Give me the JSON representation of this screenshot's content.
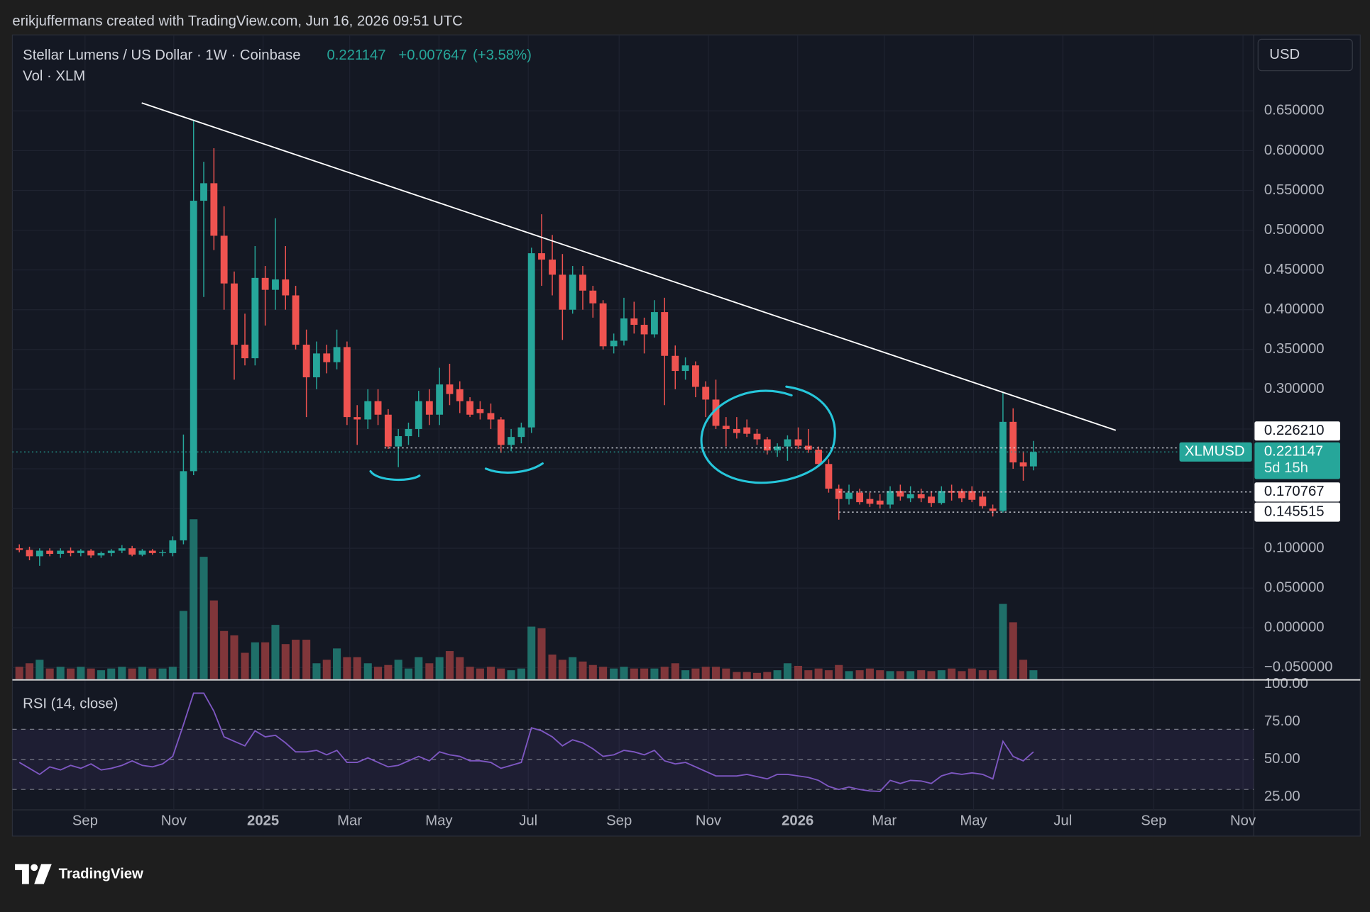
{
  "header": {
    "credit": "erikjuffermans created with TradingView.com, Jun 16, 2026 09:51 UTC"
  },
  "chart_data": {
    "type": "candlestick",
    "title": "Stellar Lumens / US Dollar · 1W · Coinbase",
    "change": {
      "value": 0.007647,
      "label": "+0.007647"
    },
    "change_percent": {
      "value": 3.58,
      "label": "(+3.58%)"
    },
    "volume_label": "Vol · XLM",
    "symbol": "XLMUSD",
    "countdown": "5d 15h",
    "currency": "USD",
    "x": [
      2024.544,
      2024.563,
      2024.582,
      2024.601,
      2024.621,
      2024.64,
      2024.659,
      2024.678,
      2024.697,
      2024.716,
      2024.736,
      2024.755,
      2024.774,
      2024.793,
      2024.812,
      2024.831,
      2024.851,
      2024.87,
      2024.889,
      2024.908,
      2024.927,
      2024.946,
      2024.966,
      2024.985,
      2025.004,
      2025.023,
      2025.042,
      2025.061,
      2025.081,
      2025.1,
      2025.119,
      2025.138,
      2025.157,
      2025.176,
      2025.196,
      2025.215,
      2025.234,
      2025.253,
      2025.272,
      2025.291,
      2025.311,
      2025.33,
      2025.349,
      2025.368,
      2025.387,
      2025.406,
      2025.426,
      2025.445,
      2025.464,
      2025.483,
      2025.502,
      2025.521,
      2025.541,
      2025.56,
      2025.579,
      2025.598,
      2025.617,
      2025.636,
      2025.656,
      2025.675,
      2025.694,
      2025.713,
      2025.732,
      2025.751,
      2025.771,
      2025.79,
      2025.809,
      2025.828,
      2025.847,
      2025.866,
      2025.886,
      2025.905,
      2025.924,
      2025.943,
      2025.962,
      2025.981,
      2026.001,
      2026.02,
      2026.039,
      2026.058,
      2026.077,
      2026.096,
      2026.116,
      2026.135,
      2026.154,
      2026.173,
      2026.192,
      2026.211,
      2026.231,
      2026.25,
      2026.269,
      2026.288,
      2026.307,
      2026.326,
      2026.346,
      2026.365,
      2026.384,
      2026.403,
      2026.422,
      2026.441
    ],
    "open": [
      0.1,
      0.098,
      0.09,
      0.097,
      0.093,
      0.097,
      0.094,
      0.097,
      0.091,
      0.094,
      0.097,
      0.1,
      0.092,
      0.097,
      0.094,
      0.094,
      0.11,
      0.197,
      0.537,
      0.559,
      0.493,
      0.433,
      0.356,
      0.339,
      0.44,
      0.425,
      0.438,
      0.418,
      0.356,
      0.315,
      0.345,
      0.334,
      0.353,
      0.265,
      0.262,
      0.285,
      0.268,
      0.228,
      0.241,
      0.25,
      0.285,
      0.268,
      0.306,
      0.3,
      0.285,
      0.275,
      0.27,
      0.262,
      0.23,
      0.24,
      0.252,
      0.471,
      0.463,
      0.444,
      0.4,
      0.444,
      0.424,
      0.408,
      0.354,
      0.361,
      0.389,
      0.381,
      0.369,
      0.397,
      0.342,
      0.323,
      0.33,
      0.303,
      0.287,
      0.254,
      0.25,
      0.252,
      0.244,
      0.237,
      0.223,
      0.228,
      0.237,
      0.229,
      0.224,
      0.206,
      0.175,
      0.162,
      0.17,
      0.162,
      0.16,
      0.155,
      0.172,
      0.163,
      0.168,
      0.165,
      0.157,
      0.172,
      0.172,
      0.172,
      0.165,
      0.15,
      0.147,
      0.259,
      0.208,
      0.203
    ],
    "high": [
      0.105,
      0.102,
      0.1,
      0.1,
      0.1,
      0.101,
      0.099,
      0.099,
      0.096,
      0.099,
      0.104,
      0.103,
      0.099,
      0.099,
      0.098,
      0.115,
      0.243,
      0.639,
      0.586,
      0.603,
      0.53,
      0.448,
      0.395,
      0.48,
      0.455,
      0.515,
      0.48,
      0.43,
      0.375,
      0.36,
      0.356,
      0.375,
      0.36,
      0.28,
      0.3,
      0.3,
      0.275,
      0.25,
      0.258,
      0.298,
      0.3,
      0.327,
      0.332,
      0.31,
      0.29,
      0.285,
      0.282,
      0.265,
      0.25,
      0.258,
      0.478,
      0.52,
      0.494,
      0.47,
      0.455,
      0.455,
      0.43,
      0.412,
      0.37,
      0.415,
      0.41,
      0.39,
      0.412,
      0.415,
      0.355,
      0.34,
      0.335,
      0.31,
      0.312,
      0.265,
      0.265,
      0.262,
      0.25,
      0.24,
      0.232,
      0.242,
      0.252,
      0.25,
      0.228,
      0.212,
      0.18,
      0.18,
      0.175,
      0.17,
      0.168,
      0.178,
      0.18,
      0.178,
      0.175,
      0.172,
      0.178,
      0.18,
      0.175,
      0.178,
      0.172,
      0.155,
      0.296,
      0.276,
      0.222,
      0.235
    ],
    "low": [
      0.095,
      0.085,
      0.078,
      0.09,
      0.088,
      0.09,
      0.09,
      0.088,
      0.088,
      0.09,
      0.094,
      0.09,
      0.09,
      0.092,
      0.09,
      0.09,
      0.105,
      0.192,
      0.416,
      0.475,
      0.4,
      0.312,
      0.33,
      0.33,
      0.38,
      0.4,
      0.4,
      0.35,
      0.265,
      0.3,
      0.32,
      0.325,
      0.255,
      0.23,
      0.25,
      0.255,
      0.225,
      0.202,
      0.23,
      0.24,
      0.255,
      0.255,
      0.28,
      0.27,
      0.265,
      0.262,
      0.25,
      0.22,
      0.222,
      0.232,
      0.245,
      0.43,
      0.418,
      0.362,
      0.395,
      0.4,
      0.39,
      0.35,
      0.345,
      0.355,
      0.37,
      0.345,
      0.365,
      0.28,
      0.3,
      0.312,
      0.29,
      0.265,
      0.25,
      0.228,
      0.238,
      0.24,
      0.23,
      0.218,
      0.215,
      0.21,
      0.225,
      0.22,
      0.205,
      0.17,
      0.136,
      0.155,
      0.155,
      0.152,
      0.15,
      0.15,
      0.16,
      0.158,
      0.158,
      0.152,
      0.155,
      0.16,
      0.158,
      0.158,
      0.15,
      0.14,
      0.145,
      0.2,
      0.185,
      0.198
    ],
    "close": [
      0.098,
      0.09,
      0.097,
      0.093,
      0.097,
      0.094,
      0.097,
      0.091,
      0.094,
      0.097,
      0.1,
      0.092,
      0.097,
      0.094,
      0.095,
      0.11,
      0.197,
      0.537,
      0.559,
      0.493,
      0.433,
      0.356,
      0.339,
      0.44,
      0.425,
      0.438,
      0.418,
      0.356,
      0.315,
      0.345,
      0.334,
      0.353,
      0.265,
      0.262,
      0.285,
      0.268,
      0.228,
      0.241,
      0.25,
      0.285,
      0.268,
      0.306,
      0.294,
      0.285,
      0.268,
      0.27,
      0.262,
      0.23,
      0.24,
      0.252,
      0.471,
      0.463,
      0.444,
      0.4,
      0.444,
      0.424,
      0.408,
      0.354,
      0.361,
      0.389,
      0.381,
      0.369,
      0.397,
      0.342,
      0.323,
      0.33,
      0.303,
      0.287,
      0.254,
      0.25,
      0.245,
      0.244,
      0.237,
      0.223,
      0.228,
      0.237,
      0.229,
      0.224,
      0.206,
      0.175,
      0.162,
      0.17,
      0.158,
      0.156,
      0.155,
      0.172,
      0.165,
      0.168,
      0.163,
      0.157,
      0.172,
      0.17,
      0.163,
      0.161,
      0.153,
      0.147,
      0.259,
      0.208,
      0.203,
      0.221147
    ],
    "volume": [
      14,
      18,
      22,
      12,
      14,
      12,
      14,
      12,
      10,
      12,
      14,
      12,
      14,
      12,
      12,
      14,
      78,
      183,
      140,
      90,
      55,
      50,
      30,
      42,
      42,
      62,
      40,
      45,
      45,
      18,
      22,
      35,
      25,
      25,
      18,
      14,
      16,
      22,
      12,
      25,
      18,
      25,
      32,
      25,
      14,
      12,
      14,
      12,
      10,
      12,
      60,
      58,
      28,
      22,
      25,
      20,
      16,
      14,
      12,
      14,
      12,
      12,
      12,
      14,
      18,
      10,
      12,
      14,
      14,
      12,
      8,
      8,
      7,
      8,
      10,
      18,
      15,
      10,
      12,
      10,
      16,
      9,
      10,
      12,
      10,
      9,
      9,
      9,
      10,
      9,
      10,
      12,
      9,
      12,
      10,
      10,
      86,
      65,
      22,
      10
    ],
    "up_color": "#26a69a",
    "down_color": "#ef5350",
    "volume_up_color": "#1f6f69",
    "volume_down_color": "#80363a",
    "xlim": [
      2024.531,
      2026.853
    ],
    "xticks": [
      {
        "value": 2024.667,
        "label": "Sep"
      },
      {
        "value": 2024.833,
        "label": "Nov"
      },
      {
        "value": 2025,
        "label": "2025"
      },
      {
        "value": 2025.162,
        "label": "Mar"
      },
      {
        "value": 2025.329,
        "label": "May"
      },
      {
        "value": 2025.496,
        "label": "Jul"
      },
      {
        "value": 2025.666,
        "label": "Sep"
      },
      {
        "value": 2025.833,
        "label": "Nov"
      },
      {
        "value": 2026,
        "label": "2026"
      },
      {
        "value": 2026.162,
        "label": "Mar"
      },
      {
        "value": 2026.329,
        "label": "May"
      },
      {
        "value": 2026.496,
        "label": "Jul"
      },
      {
        "value": 2026.666,
        "label": "Sep"
      },
      {
        "value": 2026.833,
        "label": "Nov"
      }
    ],
    "ylim": [
      -0.0643,
      0.7455
    ],
    "yticks": [
      {
        "value": -0.05,
        "label": "−0.050000"
      },
      {
        "value": 0,
        "label": "0.000000"
      },
      {
        "value": 0.05,
        "label": "0.050000"
      },
      {
        "value": 0.1,
        "label": "0.100000"
      },
      {
        "value": 0.15,
        "label": "0.150000"
      },
      {
        "value": 0.2,
        "label": "0.200000"
      },
      {
        "value": 0.25,
        "label": "0.250000"
      },
      {
        "value": 0.3,
        "label": "0.300000"
      },
      {
        "value": 0.35,
        "label": "0.350000"
      },
      {
        "value": 0.4,
        "label": "0.400000"
      },
      {
        "value": 0.45,
        "label": "0.450000"
      },
      {
        "value": 0.5,
        "label": "0.500000"
      },
      {
        "value": 0.55,
        "label": "0.550000"
      },
      {
        "value": 0.6,
        "label": "0.600000"
      },
      {
        "value": 0.65,
        "label": "0.650000"
      }
    ],
    "grid": true,
    "trendline": {
      "x": [
        2024.773,
        2026.595
      ],
      "y": [
        0.66,
        0.2484
      ],
      "color": "#ffffff"
    },
    "price_lines": [
      {
        "value": 0.22621,
        "label": "0.226210",
        "x_start": 2025.227
      },
      {
        "value": 0.170767,
        "x_start": 2026.077
      },
      {
        "value": 0.145515,
        "x_start": 2026.077
      }
    ],
    "rsi": {
      "title": "RSI (14, close)",
      "color": "#7e57c2",
      "values": [
        48,
        44,
        40,
        45,
        43,
        46,
        44,
        47,
        43,
        44,
        46,
        49,
        46,
        45,
        47,
        52,
        73,
        94,
        94,
        82,
        65,
        62,
        59,
        69,
        65,
        66,
        61,
        55,
        55,
        56,
        53,
        56,
        48,
        48,
        51,
        48,
        45,
        46,
        49,
        52,
        49,
        55,
        53,
        52,
        49,
        49,
        48,
        44,
        46,
        48,
        71,
        69,
        65,
        59,
        63,
        61,
        57,
        52,
        53,
        56,
        55,
        53,
        56,
        49,
        47,
        48,
        45,
        42,
        39,
        39,
        39,
        40,
        38.5,
        37,
        40,
        40,
        39,
        38,
        36,
        32,
        30,
        31.6,
        30,
        29,
        28.7,
        36,
        34,
        36,
        35.6,
        34,
        39,
        41,
        40,
        41,
        40,
        37,
        62,
        52,
        49,
        55
      ],
      "ylim": [
        16.4,
        102.3
      ],
      "yticks": [
        {
          "value": 100,
          "label": "100.00"
        },
        {
          "value": 75,
          "label": "75.00"
        },
        {
          "value": 50,
          "label": "50.00"
        },
        {
          "value": 25,
          "label": "25.00"
        }
      ],
      "bands": [
        70,
        50,
        30
      ]
    }
  },
  "footer": {
    "brand": "TradingView"
  }
}
